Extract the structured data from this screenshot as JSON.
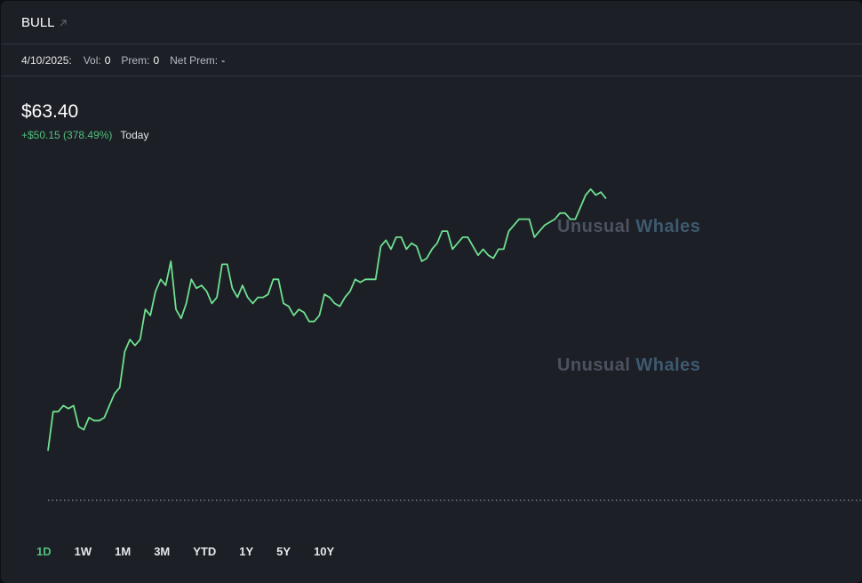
{
  "header": {
    "ticker": "BULL",
    "link_icon": "arrow-up-right-icon"
  },
  "stats": {
    "date": "4/10/2025:",
    "vol_label": "Vol:",
    "vol_value": "0",
    "prem_label": "Prem:",
    "prem_value": "0",
    "net_prem_label": "Net Prem:",
    "net_prem_value": "-"
  },
  "quote": {
    "price": "$63.40",
    "change": "+$50.15 (378.49%)",
    "period": "Today"
  },
  "watermark": {
    "part1": "Unusual",
    "part2": "Whales"
  },
  "ranges": [
    {
      "label": "1D",
      "active": true
    },
    {
      "label": "1W",
      "active": false
    },
    {
      "label": "1M",
      "active": false
    },
    {
      "label": "3M",
      "active": false
    },
    {
      "label": "YTD",
      "active": false
    },
    {
      "label": "1Y",
      "active": false
    },
    {
      "label": "5Y",
      "active": false
    },
    {
      "label": "10Y",
      "active": false
    }
  ],
  "colors": {
    "line": "#6fe08f",
    "positive": "#52c07a",
    "background": "#1c1f26",
    "baseline": "#8a8f99"
  },
  "chart_data": {
    "type": "line",
    "title": "",
    "xlabel": "",
    "ylabel": "",
    "ylim": [
      13.25,
      66
    ],
    "baseline": 13.25,
    "grid": false,
    "series": [
      {
        "values": [
          21.5,
          28,
          28,
          29,
          28.5,
          29,
          25.5,
          25,
          27,
          26.5,
          26.5,
          27,
          29,
          31,
          32,
          38,
          40,
          39,
          40,
          45,
          44,
          48,
          50,
          49,
          53,
          45,
          43.5,
          46,
          50,
          48.5,
          49,
          48,
          46,
          47,
          52.5,
          52.5,
          48.5,
          47,
          49,
          47,
          46,
          47,
          47,
          47.5,
          50,
          50,
          46,
          45.5,
          44,
          45,
          44.5,
          43,
          43,
          44,
          47.5,
          47,
          46,
          45.5,
          47,
          48,
          50,
          49.5,
          50,
          50,
          50,
          55.5,
          56.5,
          55,
          57,
          57,
          55,
          56,
          55.5,
          53,
          53.5,
          55,
          56,
          58,
          58,
          55,
          56,
          57,
          57,
          55.5,
          54,
          55,
          54,
          53.5,
          55,
          55,
          58,
          59,
          60,
          60,
          60,
          57,
          58,
          59,
          59.5,
          60,
          61,
          61,
          60,
          60,
          62,
          64,
          65,
          64,
          64.5,
          63.4
        ]
      }
    ]
  }
}
